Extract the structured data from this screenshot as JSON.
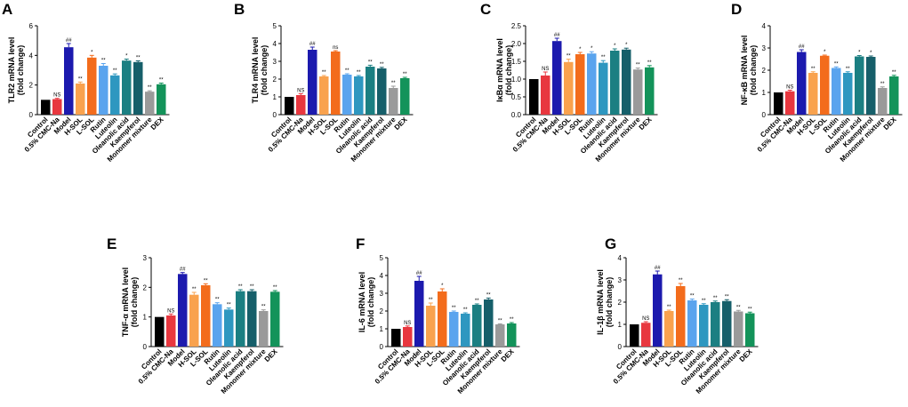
{
  "colors": [
    "#000000",
    "#e8373f",
    "#1c1aae",
    "#f9a24e",
    "#f36c1c",
    "#5aa4ee",
    "#2e97c0",
    "#1b7f82",
    "#165f6a",
    "#9a9a9a",
    "#13935a"
  ],
  "chart_data": [
    {
      "type": "bar",
      "letter": "A",
      "ylabel": "TLR2 mRNA level",
      "ylabel2": "(fold change)",
      "ylim": [
        0,
        6
      ],
      "yticks": [
        0,
        2,
        4,
        6
      ],
      "categories": [
        "Control",
        "0.5% CMC-Na",
        "Model",
        "H-SOL",
        "L-SOL",
        "Rutin",
        "Luteolin",
        "Oleanolic acid",
        "Kaempferol",
        "Monomer mixture",
        "DEX"
      ],
      "values": [
        1.0,
        1.05,
        4.55,
        2.1,
        3.85,
        3.3,
        2.65,
        3.65,
        3.55,
        1.55,
        2.05
      ],
      "errors": [
        0.0,
        0.05,
        0.25,
        0.1,
        0.15,
        0.15,
        0.1,
        0.1,
        0.08,
        0.06,
        0.08
      ],
      "labels": [
        "",
        "NS",
        "##",
        "**",
        "*",
        "**",
        "**",
        "*",
        "**",
        "**",
        "**"
      ]
    },
    {
      "type": "bar",
      "letter": "B",
      "ylabel": "TLR4 mRNA level",
      "ylabel2": "(fold change)",
      "ylim": [
        0,
        5
      ],
      "yticks": [
        0,
        1,
        2,
        3,
        4,
        5
      ],
      "categories": [
        "Control",
        "0.5% CMC-Na",
        "Model",
        "H-SOL",
        "L-SOL",
        "Rutin",
        "Luteolin",
        "Oleanolic acid",
        "Kaempferol",
        "Monomer mixture",
        "DEX"
      ],
      "values": [
        1.0,
        1.1,
        3.65,
        2.15,
        3.55,
        2.25,
        2.15,
        2.7,
        2.6,
        1.5,
        2.05
      ],
      "errors": [
        0.0,
        0.08,
        0.15,
        0.05,
        0.05,
        0.05,
        0.05,
        0.08,
        0.06,
        0.1,
        0.05
      ],
      "labels": [
        "",
        "NS",
        "##",
        "**",
        "ns",
        "**",
        "**",
        "**",
        "**",
        "**",
        "**"
      ]
    },
    {
      "type": "bar",
      "letter": "C",
      "ylabel": "IκBα mRNA level",
      "ylabel2": "(fold change)",
      "ylim": [
        0,
        2.5
      ],
      "yticks": [
        0.0,
        0.5,
        1.0,
        1.5,
        2.0,
        2.5
      ],
      "categories": [
        "Control",
        "0.5% CMC-Na",
        "Model",
        "H-SOL",
        "L-SOL",
        "Rutin",
        "Luteolin",
        "Oleanolic acid",
        "Kaempferol",
        "Monomer mixture",
        "DEX"
      ],
      "values": [
        1.0,
        1.1,
        2.07,
        1.48,
        1.7,
        1.72,
        1.46,
        1.8,
        1.83,
        1.27,
        1.33
      ],
      "errors": [
        0.0,
        0.1,
        0.08,
        0.08,
        0.05,
        0.05,
        0.06,
        0.05,
        0.04,
        0.04,
        0.05
      ],
      "labels": [
        "",
        "NS",
        "##",
        "**",
        "*",
        "*",
        "**",
        "*",
        "*",
        "**",
        "**"
      ]
    },
    {
      "type": "bar",
      "letter": "D",
      "ylabel": "NF-κB mRNA level",
      "ylabel2": "(fold change)",
      "ylim": [
        0,
        4
      ],
      "yticks": [
        0,
        1,
        2,
        3,
        4
      ],
      "categories": [
        "Control",
        "0.5% CMC-Na",
        "Model",
        "H-SOL",
        "L-SOL",
        "Rutin",
        "Luteolin",
        "Oleanolic acid",
        "Kaempferol",
        "Monomer mixture",
        "DEX"
      ],
      "values": [
        1.0,
        1.05,
        2.82,
        1.88,
        2.65,
        2.1,
        1.88,
        2.62,
        2.6,
        1.2,
        1.72
      ],
      "errors": [
        0.0,
        0.05,
        0.1,
        0.05,
        0.03,
        0.05,
        0.05,
        0.04,
        0.04,
        0.05,
        0.05
      ],
      "labels": [
        "",
        "NS",
        "##",
        "**",
        "*",
        "**",
        "**",
        "*",
        "*",
        "**",
        "**"
      ]
    },
    {
      "type": "bar",
      "letter": "E",
      "ylabel": "TNF-α mRNA level",
      "ylabel2": "(fold change)",
      "ylim": [
        0,
        3
      ],
      "yticks": [
        0,
        1,
        2,
        3
      ],
      "categories": [
        "Control",
        "0.5% CMC-Na",
        "Model",
        "H-SOL",
        "L-SOL",
        "Rutin",
        "Luteolin",
        "Oleanolic acid",
        "Kaempferol",
        "Monomer mixture",
        "DEX"
      ],
      "values": [
        1.0,
        1.05,
        2.45,
        1.75,
        2.07,
        1.43,
        1.25,
        1.87,
        1.87,
        1.2,
        1.85
      ],
      "errors": [
        0.0,
        0.05,
        0.05,
        0.08,
        0.05,
        0.05,
        0.05,
        0.05,
        0.05,
        0.04,
        0.04
      ],
      "labels": [
        "",
        "NS",
        "##",
        "**",
        "**",
        "**",
        "**",
        "**",
        "**",
        "**",
        "**"
      ]
    },
    {
      "type": "bar",
      "letter": "F",
      "ylabel": "IL-6 mRNA level",
      "ylabel2": "(fold change)",
      "ylim": [
        0,
        5
      ],
      "yticks": [
        0,
        1,
        2,
        3,
        4,
        5
      ],
      "categories": [
        "Control",
        "0.5% CMC-Na",
        "Model",
        "H-SOL",
        "L-SOL",
        "Rutin",
        "Luteolin",
        "Oleanolic acid",
        "Kaempferol",
        "Monomer mixture",
        "DEX"
      ],
      "values": [
        1.0,
        1.1,
        3.7,
        2.3,
        3.1,
        1.95,
        1.85,
        2.35,
        2.65,
        1.25,
        1.3
      ],
      "errors": [
        0.0,
        0.06,
        0.25,
        0.15,
        0.15,
        0.05,
        0.05,
        0.05,
        0.08,
        0.03,
        0.05
      ],
      "labels": [
        "",
        "NS",
        "##",
        "**",
        "*",
        "**",
        "**",
        "**",
        "**",
        "**",
        "**"
      ]
    },
    {
      "type": "bar",
      "letter": "G",
      "ylabel": "IL-1β mRNA level",
      "ylabel2": "(fold change)",
      "ylim": [
        0,
        4
      ],
      "yticks": [
        0,
        1,
        2,
        3,
        4
      ],
      "categories": [
        "Control",
        "0.5% CMC-Na",
        "Model",
        "H-SOL",
        "L-SOL",
        "Rutin",
        "Luteolin",
        "Oleanolic acid",
        "Kaempferol",
        "Monomer mixture",
        "DEX"
      ],
      "values": [
        1.0,
        1.07,
        3.25,
        1.6,
        2.72,
        2.08,
        1.88,
        2.0,
        2.05,
        1.58,
        1.5
      ],
      "errors": [
        0.0,
        0.05,
        0.15,
        0.04,
        0.12,
        0.06,
        0.05,
        0.05,
        0.06,
        0.05,
        0.05
      ],
      "labels": [
        "",
        "NS",
        "##",
        "**",
        "**",
        "**",
        "**",
        "**",
        "**",
        "**",
        "**"
      ]
    }
  ]
}
